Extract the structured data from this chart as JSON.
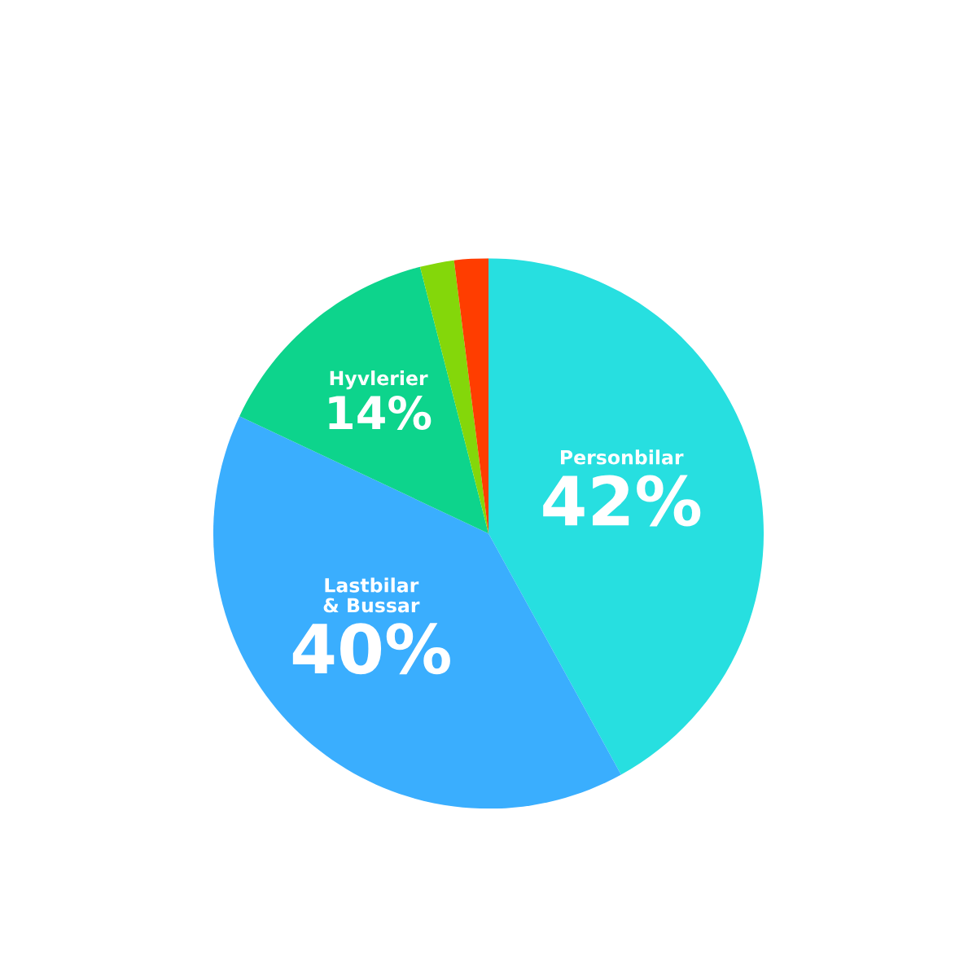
{
  "chart_data": {
    "type": "pie",
    "categories": [
      "Personbilar",
      "Lastbilar\n& Bussar",
      "Hyvlerier",
      null,
      null
    ],
    "values": [
      42,
      40,
      14,
      2,
      2
    ],
    "value_labels": [
      "42%",
      "40%",
      "14%",
      null,
      null
    ],
    "colors": [
      "#27dfe0",
      "#3aaefe",
      "#0dd48c",
      "#84d70a",
      "#ff3d00"
    ]
  }
}
